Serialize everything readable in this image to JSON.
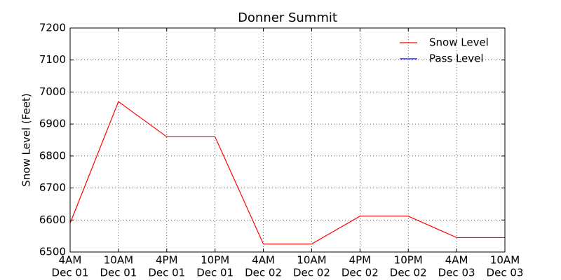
{
  "chart_data": {
    "type": "line",
    "title": "Donner Summit",
    "y_label": "Snow Level (Feet)",
    "categories": [
      [
        "4AM",
        "Dec 01"
      ],
      [
        "10AM",
        "Dec 01"
      ],
      [
        "4PM",
        "Dec 01"
      ],
      [
        "10PM",
        "Dec 01"
      ],
      [
        "4AM",
        "Dec 02"
      ],
      [
        "10AM",
        "Dec 02"
      ],
      [
        "4PM",
        "Dec 02"
      ],
      [
        "10PM",
        "Dec 02"
      ],
      [
        "4AM",
        "Dec 03"
      ],
      [
        "10AM",
        "Dec 03"
      ]
    ],
    "series": [
      {
        "name": "Snow Level",
        "color": "#ff0000",
        "values": [
          6590,
          6970,
          6860,
          6860,
          6525,
          6525,
          6612,
          6612,
          6545,
          6545
        ]
      },
      {
        "name": "Pass Level",
        "color": "#0000ff",
        "values": [
          null,
          null,
          null,
          null,
          null,
          null,
          null,
          null,
          null,
          null
        ]
      }
    ],
    "ylim": [
      6500,
      7200
    ],
    "yticks": [
      6500,
      6600,
      6700,
      6800,
      6900,
      7000,
      7100,
      7200
    ],
    "grid": true,
    "legend": "upper right"
  }
}
